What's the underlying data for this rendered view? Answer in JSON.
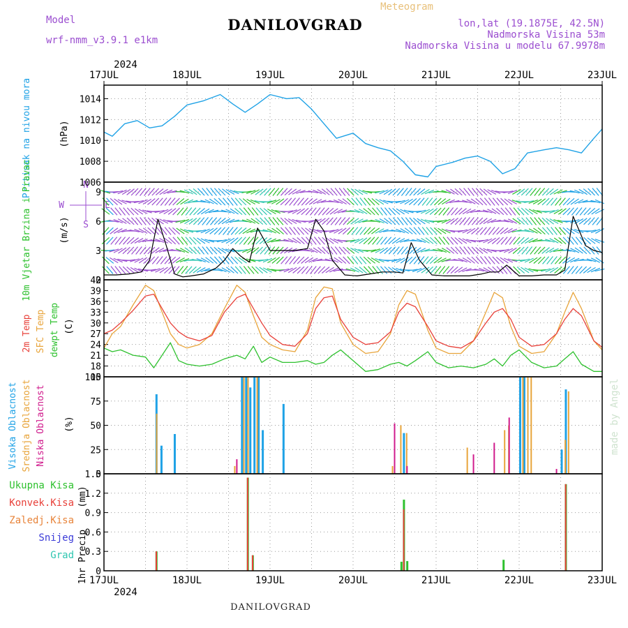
{
  "header": {
    "model_label": "Model",
    "model_name": "wrf-nmm_v3.9.1 e1km",
    "title": "DANILOVGRAD",
    "meteogram": "Meteogram",
    "lonlat": "lon,lat (19.1875E, 42.5N)",
    "elevation": "Nadmorska Visina 53m",
    "model_elevation": "Nadmorska Visina u modelu 67.9978m",
    "footer": "DANILOVGRAD",
    "watermark": "made by Angel"
  },
  "colors": {
    "pressure": "#1fa2e6",
    "temp2m": "#e8413a",
    "sfc": "#e8a43a",
    "dewpt": "#2ec12e",
    "purple": "#9b4ed0",
    "high": "#1fa2e6",
    "mid": "#e8a43a",
    "low": "#d01b8c",
    "total": "#2ec12e",
    "conv": "#e8413a",
    "snow": "#3b3bd8",
    "hail": "#2ec6b0"
  },
  "chart_data": {
    "type": "line",
    "x_axis": {
      "year": "2024",
      "ticks": [
        "17JUL",
        "18JUL",
        "19JUL",
        "20JUL",
        "21JUL",
        "22JUL",
        "23JUL"
      ],
      "range_days": [
        0,
        6
      ]
    },
    "pressure": {
      "ylabel": "Pritisak na nivou mora",
      "unit": "(hPa)",
      "ylim": [
        1006,
        1015.3
      ],
      "yticks": [
        "1014",
        "1012",
        "1010",
        "1008",
        "1006"
      ],
      "ytick_values": [
        1014,
        1012,
        1010,
        1008,
        1006
      ],
      "t": [
        0,
        0.1,
        0.25,
        0.4,
        0.55,
        0.7,
        0.85,
        1.0,
        1.2,
        1.4,
        1.55,
        1.7,
        1.85,
        2.0,
        2.2,
        2.35,
        2.5,
        2.65,
        2.8,
        3.0,
        3.15,
        3.3,
        3.45,
        3.6,
        3.75,
        3.9,
        4.0,
        4.2,
        4.35,
        4.5,
        4.65,
        4.8,
        4.95,
        5.1,
        5.3,
        5.45,
        5.6,
        5.75,
        5.9,
        6.0
      ],
      "values": [
        1010.8,
        1010.4,
        1011.6,
        1011.9,
        1011.2,
        1011.4,
        1012.3,
        1013.4,
        1013.8,
        1014.4,
        1013.5,
        1012.7,
        1013.5,
        1014.4,
        1014.0,
        1014.1,
        1013.0,
        1011.6,
        1010.2,
        1010.7,
        1009.7,
        1009.3,
        1009.0,
        1008.0,
        1006.7,
        1006.5,
        1007.5,
        1007.9,
        1008.3,
        1008.5,
        1008.0,
        1006.8,
        1007.3,
        1008.8,
        1009.1,
        1009.3,
        1009.1,
        1008.8,
        1010.2,
        1011.1
      ]
    },
    "wind": {
      "ylabel": "10m Vjetar Brzina i Pravac",
      "unit": "(m/s)",
      "compass": [
        "N",
        "E",
        "S",
        "W"
      ],
      "ylim": [
        0,
        10
      ],
      "yticks": [
        "9",
        "6",
        "3",
        "0"
      ],
      "ytick_values": [
        9,
        6,
        3,
        0
      ],
      "t": [
        0,
        0.15,
        0.3,
        0.45,
        0.55,
        0.65,
        0.75,
        0.85,
        0.95,
        1.05,
        1.2,
        1.35,
        1.45,
        1.55,
        1.65,
        1.75,
        1.85,
        2.0,
        2.15,
        2.3,
        2.45,
        2.55,
        2.65,
        2.75,
        2.9,
        3.05,
        3.2,
        3.35,
        3.5,
        3.6,
        3.7,
        3.8,
        3.95,
        4.1,
        4.25,
        4.4,
        4.55,
        4.65,
        4.75,
        4.85,
        5.0,
        5.15,
        5.3,
        5.45,
        5.55,
        5.65,
        5.8,
        5.9,
        6.0
      ],
      "speed": [
        0.5,
        0.5,
        0.6,
        0.8,
        2.0,
        6.2,
        3.5,
        0.6,
        0.3,
        0.4,
        0.6,
        1.2,
        2.0,
        3.2,
        2.4,
        1.8,
        5.3,
        3.0,
        3.0,
        3.0,
        3.2,
        6.2,
        5.0,
        2.0,
        0.5,
        0.4,
        0.6,
        0.8,
        0.8,
        0.7,
        3.8,
        2.0,
        0.5,
        0.4,
        0.4,
        0.4,
        0.6,
        0.8,
        0.8,
        1.5,
        0.4,
        0.4,
        0.5,
        0.5,
        1.0,
        6.5,
        3.5,
        3.0,
        2.8
      ]
    },
    "temperature": {
      "labels": [
        "2m Temp",
        "SFC Temp",
        "dewpt Temp"
      ],
      "unit": "(C)",
      "ylim": [
        15,
        42
      ],
      "yticks": [
        "42",
        "39",
        "36",
        "33",
        "30",
        "27",
        "24",
        "21",
        "18",
        "15"
      ],
      "ytick_values": [
        42,
        39,
        36,
        33,
        30,
        27,
        24,
        21,
        18,
        15
      ],
      "t": [
        0,
        0.1,
        0.2,
        0.35,
        0.5,
        0.6,
        0.7,
        0.8,
        0.9,
        1.0,
        1.15,
        1.3,
        1.45,
        1.6,
        1.7,
        1.8,
        1.9,
        2.0,
        2.15,
        2.3,
        2.45,
        2.55,
        2.65,
        2.75,
        2.85,
        3.0,
        3.15,
        3.3,
        3.45,
        3.55,
        3.65,
        3.75,
        3.9,
        4.0,
        4.15,
        4.3,
        4.45,
        4.6,
        4.7,
        4.8,
        4.9,
        5.0,
        5.15,
        5.3,
        5.45,
        5.55,
        5.65,
        5.75,
        5.9,
        6.0
      ],
      "t2m": [
        27,
        28,
        30,
        33.5,
        37.5,
        38,
        34,
        30,
        27.5,
        26,
        25,
        26.5,
        33,
        37,
        38,
        34,
        30,
        26.5,
        24,
        23.5,
        27,
        34,
        37,
        37.5,
        31,
        26,
        24,
        24.5,
        27.5,
        33,
        35.5,
        34.5,
        29,
        25,
        23.5,
        23,
        25,
        30,
        33,
        34,
        31,
        26,
        23.5,
        24,
        27,
        31,
        34,
        32,
        25,
        23.2
      ],
      "sfc": [
        23,
        27,
        29,
        35,
        40.5,
        39,
        33,
        27,
        24,
        23,
        24,
        27,
        34,
        40.5,
        38.5,
        32,
        26,
        24,
        22.5,
        22,
        28,
        37,
        40,
        39.5,
        30,
        24,
        21.5,
        22,
        27,
        35,
        39,
        38,
        28,
        23,
        21.5,
        21.5,
        25,
        33,
        38.5,
        37,
        29,
        23.5,
        21.5,
        22,
        27,
        33,
        38.5,
        34,
        25,
        22.5
      ],
      "dew": [
        23,
        22,
        22.5,
        21,
        20.5,
        17.5,
        21,
        24.5,
        19.5,
        18.5,
        18,
        18.5,
        20,
        21,
        20,
        23.5,
        19,
        20.5,
        19,
        19,
        19.5,
        18.5,
        19,
        21,
        22.5,
        19.5,
        16.5,
        17,
        18.5,
        19,
        18,
        19.5,
        22,
        19,
        17.5,
        18,
        17.5,
        18.5,
        20,
        18,
        21,
        22.5,
        19,
        17.5,
        18,
        20,
        22,
        18.5,
        16.5,
        16.5
      ]
    },
    "clouds": {
      "labels": [
        "Visoka Oblacnost",
        "Srednja Oblacnost",
        "Niska Oblacnost"
      ],
      "unit": "(%)",
      "ylim": [
        0,
        100
      ],
      "yticks": [
        "100",
        "75",
        "50",
        "25",
        "0"
      ],
      "ytick_values": [
        100,
        75,
        50,
        25,
        0
      ],
      "high": [
        [
          0.62,
          82
        ],
        [
          0.68,
          29
        ],
        [
          0.84,
          41
        ],
        [
          1.65,
          100
        ],
        [
          1.7,
          100
        ],
        [
          1.75,
          89
        ],
        [
          1.8,
          100
        ],
        [
          1.85,
          100
        ],
        [
          1.9,
          45
        ],
        [
          2.15,
          72
        ],
        [
          3.6,
          42
        ],
        [
          5.0,
          100
        ],
        [
          5.05,
          100
        ],
        [
          5.5,
          25
        ],
        [
          5.55,
          87
        ]
      ],
      "mid": [
        [
          0.61,
          62
        ],
        [
          1.55,
          8
        ],
        [
          1.66,
          100
        ],
        [
          1.71,
          100
        ],
        [
          1.82,
          100
        ],
        [
          3.45,
          8
        ],
        [
          3.55,
          50
        ],
        [
          3.62,
          42
        ],
        [
          4.35,
          27
        ],
        [
          4.8,
          45
        ],
        [
          4.85,
          50
        ],
        [
          5.02,
          100
        ],
        [
          5.08,
          100
        ],
        [
          5.12,
          100
        ],
        [
          5.53,
          35
        ],
        [
          5.57,
          85
        ]
      ],
      "low": [
        [
          1.6,
          15
        ],
        [
          3.5,
          52
        ],
        [
          3.65,
          8
        ],
        [
          4.45,
          20
        ],
        [
          4.7,
          32
        ],
        [
          4.88,
          58
        ],
        [
          5.45,
          5
        ]
      ]
    },
    "precip": {
      "labels": [
        "Ukupna Kisa",
        "Konvek.Kisa",
        "Zaledj.Kisa",
        "Snijeg",
        "Grad"
      ],
      "ylabel": "1hr Precip",
      "unit": "(mm)",
      "ylim": [
        0,
        1.5
      ],
      "yticks": [
        "1.5",
        "1.2",
        "0.9",
        "0.6",
        "0.3",
        "0"
      ],
      "ytick_values": [
        1.5,
        1.2,
        0.9,
        0.6,
        0.3,
        0
      ],
      "total": [
        [
          0.62,
          0.3
        ],
        [
          1.72,
          1.44
        ],
        [
          1.78,
          0.24
        ],
        [
          3.57,
          0.14
        ],
        [
          3.6,
          1.1
        ],
        [
          3.64,
          0.15
        ],
        [
          4.8,
          0.17
        ],
        [
          5.55,
          1.34
        ]
      ],
      "conv": [
        [
          0.63,
          0.3
        ],
        [
          1.73,
          1.44
        ],
        [
          1.79,
          0.24
        ],
        [
          3.61,
          0.95
        ],
        [
          5.56,
          1.34
        ]
      ]
    }
  }
}
